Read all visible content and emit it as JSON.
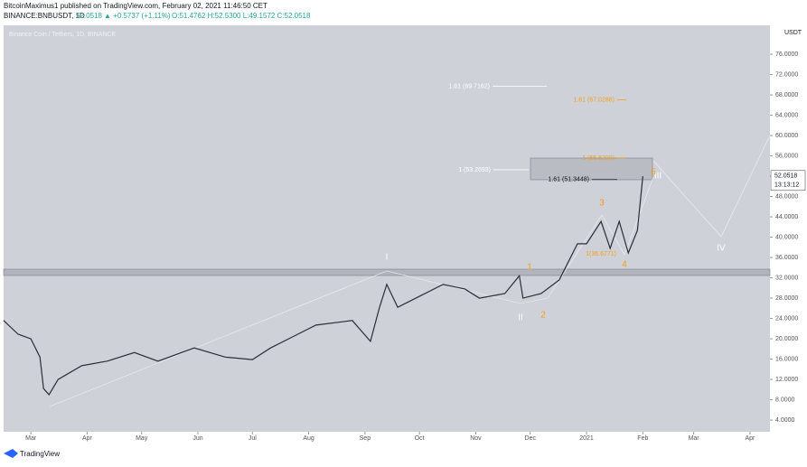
{
  "header": {
    "title": "BitcoinMaximus1 published on TradingView.com, February 02, 2021 11:46:50 CET",
    "symbol": "BINANCE:BNBUSDT, 1D",
    "price": "52.0518",
    "change": "▲ +0.5737 (+1.11%)",
    "ohlc": "O:51.4762 H:52.5300 L:49.1572 C:52.0518"
  },
  "chart_data": {
    "type": "line",
    "title": "Binance Coin / Tethers, 1D, BINANCE",
    "color": "#2a2e39",
    "y_axis_label": "USDT",
    "x": [
      -15,
      -7,
      0,
      5,
      7,
      10,
      15,
      28,
      42,
      57,
      70,
      90,
      107,
      122,
      132,
      147,
      157,
      177,
      187,
      192,
      196,
      202,
      212,
      227,
      239,
      247,
      261,
      269,
      271,
      281,
      291,
      301,
      306,
      314,
      319,
      324,
      329,
      334,
      337
    ],
    "values": [
      23.6,
      20.9,
      20,
      16.4,
      10.2,
      9,
      12,
      14.7,
      15.6,
      17.3,
      15.6,
      18.2,
      16.4,
      15.9,
      18.2,
      20.9,
      22.7,
      23.6,
      19.5,
      26.2,
      30.7,
      26.2,
      28,
      30.7,
      29.8,
      28,
      28.9,
      32.4,
      28,
      28.9,
      31.6,
      38.7,
      38.7,
      43.1,
      37.8,
      43.1,
      36.9,
      41.3,
      52
    ],
    "xlim": [
      -15,
      407
    ],
    "xticks": [
      {
        "value": 0,
        "label": "Mar"
      },
      {
        "value": 31,
        "label": "Apr"
      },
      {
        "value": 61,
        "label": "May"
      },
      {
        "value": 92,
        "label": "Jun"
      },
      {
        "value": 122,
        "label": "Jul"
      },
      {
        "value": 153,
        "label": "Aug"
      },
      {
        "value": 184,
        "label": "Sep"
      },
      {
        "value": 214,
        "label": "Oct"
      },
      {
        "value": 245,
        "label": "Nov"
      },
      {
        "value": 275,
        "label": "Dec"
      },
      {
        "value": 306,
        "label": "2021"
      },
      {
        "value": 337,
        "label": "Feb"
      },
      {
        "value": 365,
        "label": "Mar"
      },
      {
        "value": 396,
        "label": "Apr"
      }
    ],
    "ylim": [
      1.7,
      81.7
    ],
    "yticks": [
      {
        "value": 4,
        "label": "4.0000"
      },
      {
        "value": 8,
        "label": "8.0000"
      },
      {
        "value": 12,
        "label": "12.0000"
      },
      {
        "value": 16,
        "label": "16.0000"
      },
      {
        "value": 20,
        "label": "20.0000"
      },
      {
        "value": 24,
        "label": "24.0000"
      },
      {
        "value": 28,
        "label": "28.0000"
      },
      {
        "value": 32,
        "label": "32.0000"
      },
      {
        "value": 36,
        "label": "36.0000"
      },
      {
        "value": 40,
        "label": "40.0000"
      },
      {
        "value": 44,
        "label": "44.0000"
      },
      {
        "value": 48,
        "label": "48.0000"
      },
      {
        "value": 52,
        "label": "52.0000"
      },
      {
        "value": 56,
        "label": "56.0000"
      },
      {
        "value": 60,
        "label": "60.0000"
      },
      {
        "value": 64,
        "label": "64.0000"
      },
      {
        "value": 68,
        "label": "68.0000"
      },
      {
        "value": 72,
        "label": "72.0000"
      },
      {
        "value": 76,
        "label": "76.0000"
      }
    ],
    "last_price": 52.0518,
    "countdown": "13:13:12",
    "fib_levels": [
      {
        "label": "1.61 (69.7162)",
        "value": 69.7162,
        "color": "#ffffff"
      },
      {
        "label": "1.61 (67.0288)",
        "value": 67.0288,
        "color": "#f5a01a"
      },
      {
        "label": "1 (55.5200)",
        "value": 55.52,
        "color": "#f5a01a"
      },
      {
        "label": "1 (53.2693)",
        "value": 53.2693,
        "color": "#ffffff"
      },
      {
        "label": "1.61 (51.3448)",
        "value": 51.3448,
        "color": "#131722"
      },
      {
        "label": "1(36.6771)",
        "value": 36.6771,
        "color": "#f5a01a"
      }
    ],
    "waves": [
      {
        "text": "I",
        "color": "#ffffff"
      },
      {
        "text": "II",
        "color": "#ffffff"
      },
      {
        "text": "III",
        "color": "#ffffff"
      },
      {
        "text": "IV",
        "color": "#ffffff"
      },
      {
        "text": "1",
        "color": "#f5a01a"
      },
      {
        "text": "2",
        "color": "#f5a01a"
      },
      {
        "text": "3",
        "color": "#f5a01a"
      },
      {
        "text": "4",
        "color": "#f5a01a"
      },
      {
        "text": "5",
        "color": "#f5a01a"
      }
    ]
  },
  "footer": {
    "brand": "TradingView"
  }
}
